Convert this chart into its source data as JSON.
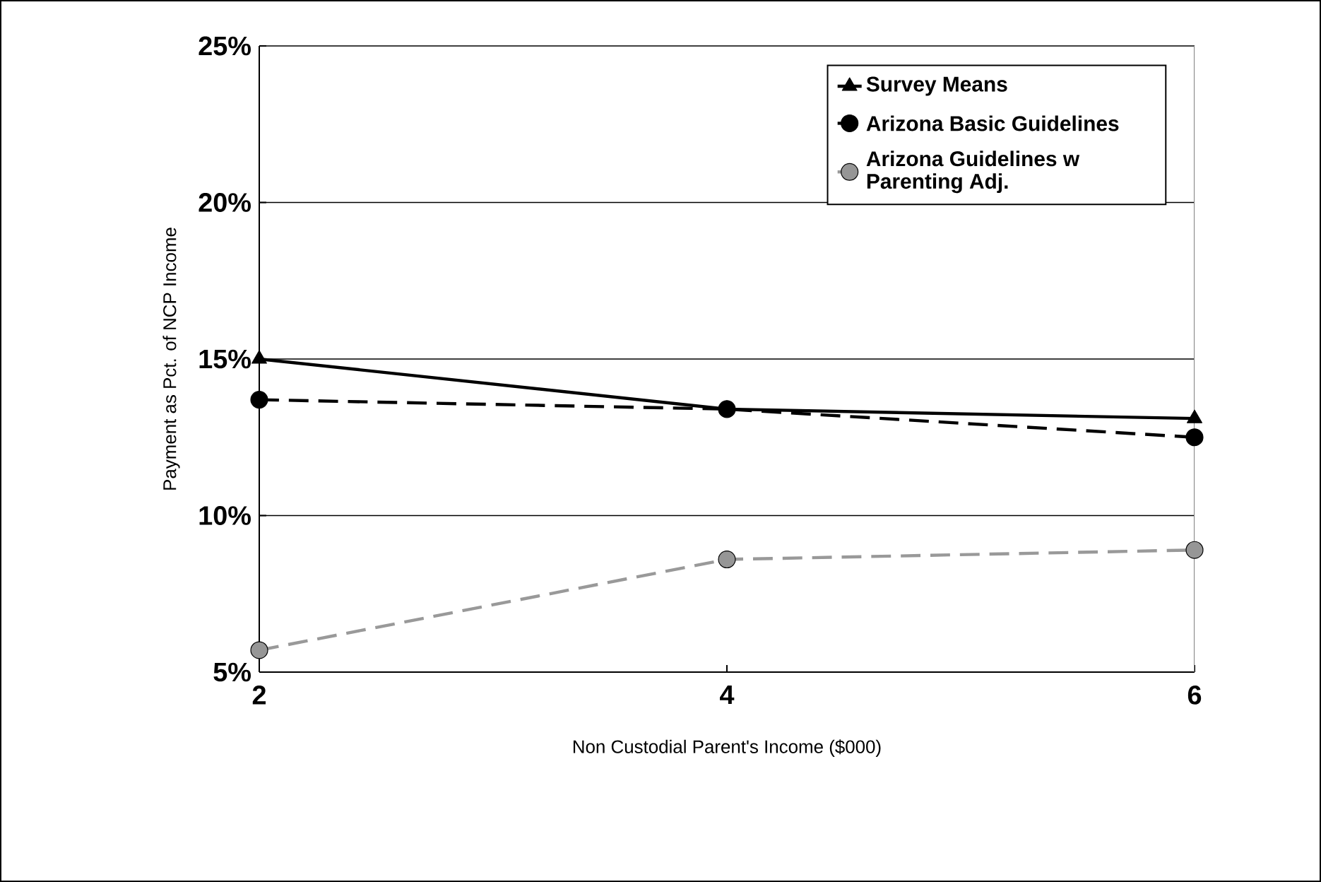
{
  "chart_data": {
    "type": "line",
    "xlabel": "Non Custodial Parent's Income ($000)",
    "ylabel": "Payment as Pct. of NCP Income",
    "x": [
      2,
      4,
      6
    ],
    "xlim": [
      2,
      6
    ],
    "xticks": [
      2,
      4,
      6
    ],
    "ylim": [
      5,
      25
    ],
    "yticks": [
      {
        "value": 5,
        "label": "5%"
      },
      {
        "value": 10,
        "label": "10%"
      },
      {
        "value": 15,
        "label": "15%"
      },
      {
        "value": 20,
        "label": "20%"
      },
      {
        "value": 25,
        "label": "25%"
      }
    ],
    "grid": "y",
    "legend": "top right",
    "series": [
      {
        "name": "Survey Means",
        "color": "#000000",
        "marker": "triangle",
        "line_style": "solid",
        "values": [
          15.0,
          13.4,
          13.1
        ]
      },
      {
        "name": "Arizona Basic Guidelines",
        "color": "#000000",
        "marker": "circle",
        "line_style": "dashed",
        "values": [
          13.7,
          13.4,
          12.5
        ]
      },
      {
        "name": "Arizona Guidelines w Parenting Adj.",
        "color": "#999999",
        "marker": "circle",
        "line_style": "dashed",
        "values": [
          5.7,
          8.6,
          8.9
        ]
      }
    ]
  }
}
